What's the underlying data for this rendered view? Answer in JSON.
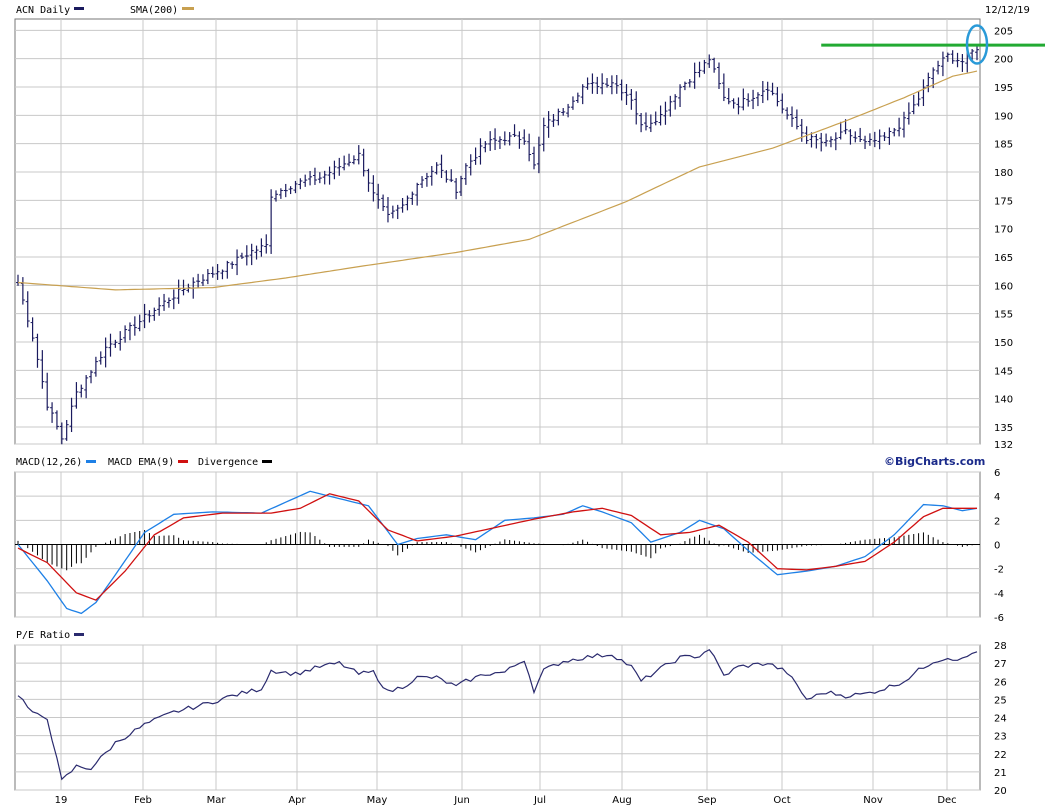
{
  "chart_data": [
    {
      "type": "ohlc",
      "panel": "price",
      "legend": [
        {
          "label": "ACN Daily",
          "color": "#1a1a5e"
        },
        {
          "label": "SMA(200)",
          "color": "#c8a050"
        }
      ],
      "date_label": "12/12/19",
      "x_labels": [
        "19",
        "Feb",
        "Mar",
        "Apr",
        "May",
        "Jun",
        "Jul",
        "Aug",
        "Sep",
        "Oct",
        "Nov",
        "Dec"
      ],
      "y_ticks": [
        205,
        200,
        195,
        190,
        185,
        180,
        175,
        170,
        165,
        160,
        155,
        150,
        145,
        140,
        135,
        132
      ],
      "ylim": [
        132,
        205
      ],
      "close_anchors": [
        [
          0,
          160.5
        ],
        [
          3,
          151
        ],
        [
          6,
          139
        ],
        [
          9,
          133
        ],
        [
          12,
          141
        ],
        [
          18,
          149
        ],
        [
          24,
          153
        ],
        [
          30,
          157
        ],
        [
          36,
          160.5
        ],
        [
          42,
          163
        ],
        [
          48,
          166
        ],
        [
          51,
          167
        ],
        [
          52,
          176
        ],
        [
          57,
          178
        ],
        [
          62,
          179
        ],
        [
          66,
          181
        ],
        [
          70,
          183
        ],
        [
          73,
          176
        ],
        [
          76,
          172
        ],
        [
          79,
          174
        ],
        [
          82,
          178
        ],
        [
          86,
          181
        ],
        [
          90,
          177
        ],
        [
          92,
          181
        ],
        [
          96,
          185
        ],
        [
          100,
          186
        ],
        [
          104,
          186
        ],
        [
          106,
          181
        ],
        [
          108,
          188
        ],
        [
          112,
          191
        ],
        [
          116,
          195
        ],
        [
          122,
          196
        ],
        [
          126,
          193
        ],
        [
          128,
          188
        ],
        [
          132,
          190
        ],
        [
          136,
          195
        ],
        [
          140,
          198
        ],
        [
          142,
          200
        ],
        [
          145,
          193
        ],
        [
          148,
          192
        ],
        [
          154,
          195
        ],
        [
          158,
          190
        ],
        [
          162,
          186
        ],
        [
          166,
          185
        ],
        [
          170,
          187
        ],
        [
          174,
          185
        ],
        [
          178,
          186
        ],
        [
          182,
          189
        ],
        [
          185,
          193
        ],
        [
          188,
          198
        ],
        [
          191,
          200.5
        ],
        [
          194,
          199.5
        ],
        [
          197,
          202
        ]
      ],
      "sma200_anchors": [
        [
          0,
          160.5
        ],
        [
          20,
          159.2
        ],
        [
          40,
          159.6
        ],
        [
          55,
          161.3
        ],
        [
          70,
          163.3
        ],
        [
          90,
          165.8
        ],
        [
          105,
          168.1
        ],
        [
          125,
          174.8
        ],
        [
          140,
          180.9
        ],
        [
          155,
          184.2
        ],
        [
          170,
          189.0
        ],
        [
          182,
          193.1
        ],
        [
          192,
          196.9
        ],
        [
          197,
          197.8
        ]
      ],
      "resistance_level": 202.4,
      "annotation": "highlight-latest-bar",
      "brand": "©BigCharts.com"
    },
    {
      "type": "line",
      "panel": "macd",
      "legend": [
        {
          "label": "MACD(12,26)",
          "color": "#1e80e6"
        },
        {
          "label": "MACD EMA(9)",
          "color": "#d01010"
        },
        {
          "label": "Divergence",
          "color": "#000000"
        }
      ],
      "y_ticks": [
        6,
        4,
        2,
        0,
        -2,
        -4,
        -6
      ],
      "ylim": [
        -6,
        6
      ],
      "macd_anchors": [
        [
          0,
          0
        ],
        [
          6,
          -3
        ],
        [
          10,
          -5.3
        ],
        [
          13,
          -5.7
        ],
        [
          16,
          -4.8
        ],
        [
          20,
          -2.5
        ],
        [
          26,
          1.0
        ],
        [
          32,
          2.5
        ],
        [
          40,
          2.7
        ],
        [
          50,
          2.6
        ],
        [
          55,
          3.5
        ],
        [
          60,
          4.4
        ],
        [
          66,
          3.8
        ],
        [
          72,
          3.2
        ],
        [
          78,
          0.0
        ],
        [
          82,
          0.5
        ],
        [
          88,
          0.8
        ],
        [
          94,
          0.4
        ],
        [
          100,
          2.0
        ],
        [
          106,
          2.2
        ],
        [
          112,
          2.5
        ],
        [
          116,
          3.2
        ],
        [
          120,
          2.7
        ],
        [
          126,
          1.8
        ],
        [
          130,
          0.2
        ],
        [
          136,
          1.0
        ],
        [
          140,
          2.0
        ],
        [
          145,
          1.3
        ],
        [
          150,
          -0.5
        ],
        [
          156,
          -2.5
        ],
        [
          162,
          -2.2
        ],
        [
          168,
          -1.8
        ],
        [
          174,
          -1.0
        ],
        [
          180,
          0.8
        ],
        [
          186,
          3.3
        ],
        [
          190,
          3.2
        ],
        [
          194,
          2.8
        ],
        [
          197,
          3.0
        ]
      ],
      "signal_anchors": [
        [
          0,
          -0.3
        ],
        [
          6,
          -1.5
        ],
        [
          12,
          -4.0
        ],
        [
          16,
          -4.6
        ],
        [
          22,
          -2.2
        ],
        [
          28,
          0.8
        ],
        [
          34,
          2.2
        ],
        [
          42,
          2.6
        ],
        [
          52,
          2.6
        ],
        [
          58,
          3.0
        ],
        [
          64,
          4.2
        ],
        [
          70,
          3.6
        ],
        [
          76,
          1.2
        ],
        [
          82,
          0.3
        ],
        [
          90,
          0.7
        ],
        [
          98,
          1.4
        ],
        [
          106,
          2.1
        ],
        [
          114,
          2.7
        ],
        [
          120,
          3.0
        ],
        [
          126,
          2.4
        ],
        [
          132,
          0.8
        ],
        [
          138,
          1.0
        ],
        [
          144,
          1.6
        ],
        [
          150,
          0.2
        ],
        [
          156,
          -2.0
        ],
        [
          162,
          -2.1
        ],
        [
          168,
          -1.8
        ],
        [
          174,
          -1.4
        ],
        [
          180,
          0.2
        ],
        [
          186,
          2.3
        ],
        [
          190,
          3.0
        ],
        [
          194,
          3.0
        ],
        [
          197,
          3.0
        ]
      ]
    },
    {
      "type": "line",
      "panel": "pe",
      "legend": [
        {
          "label": "P/E Ratio",
          "color": "#2a2a6e"
        }
      ],
      "y_ticks": [
        28,
        27,
        26,
        25,
        24,
        23,
        22,
        21,
        20
      ],
      "ylim": [
        20,
        28
      ],
      "pe_anchors": [
        [
          0,
          25.3
        ],
        [
          3,
          24.2
        ],
        [
          6,
          24.0
        ],
        [
          9,
          20.5
        ],
        [
          12,
          21.3
        ],
        [
          15,
          21.2
        ],
        [
          20,
          22.6
        ],
        [
          26,
          23.6
        ],
        [
          32,
          24.3
        ],
        [
          38,
          24.7
        ],
        [
          44,
          25.2
        ],
        [
          50,
          25.6
        ],
        [
          52,
          26.6
        ],
        [
          57,
          26.4
        ],
        [
          62,
          26.8
        ],
        [
          66,
          27.0
        ],
        [
          70,
          26.4
        ],
        [
          73,
          26.5
        ],
        [
          76,
          25.4
        ],
        [
          79,
          25.7
        ],
        [
          82,
          26.2
        ],
        [
          86,
          26.2
        ],
        [
          90,
          25.7
        ],
        [
          92,
          26.0
        ],
        [
          96,
          26.4
        ],
        [
          100,
          26.5
        ],
        [
          104,
          27.2
        ],
        [
          106,
          25.5
        ],
        [
          108,
          26.6
        ],
        [
          112,
          27.1
        ],
        [
          116,
          27.3
        ],
        [
          122,
          27.5
        ],
        [
          126,
          26.8
        ],
        [
          128,
          26.0
        ],
        [
          132,
          26.7
        ],
        [
          136,
          27.3
        ],
        [
          140,
          27.4
        ],
        [
          142,
          27.8
        ],
        [
          145,
          26.3
        ],
        [
          148,
          26.8
        ],
        [
          154,
          27.0
        ],
        [
          158,
          26.5
        ],
        [
          162,
          25.0
        ],
        [
          166,
          25.4
        ],
        [
          170,
          25.2
        ],
        [
          174,
          25.3
        ],
        [
          178,
          25.6
        ],
        [
          182,
          26.0
        ],
        [
          185,
          26.6
        ],
        [
          188,
          27.1
        ],
        [
          191,
          27.3
        ],
        [
          194,
          27.2
        ],
        [
          197,
          27.7
        ]
      ]
    }
  ]
}
